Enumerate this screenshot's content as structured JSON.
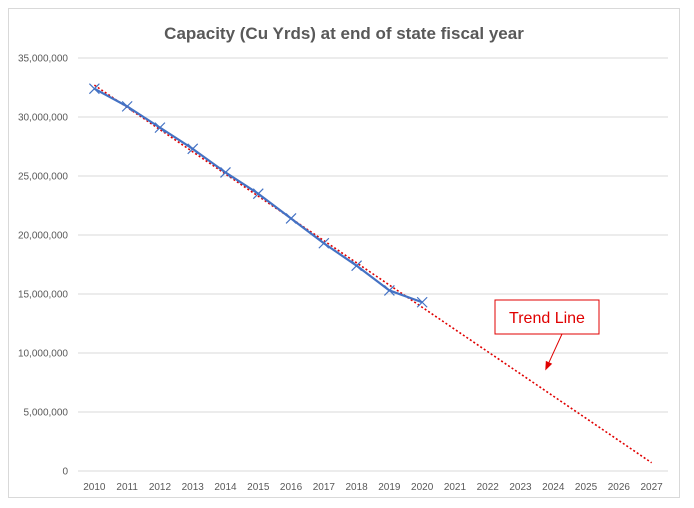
{
  "chart_data": {
    "type": "line",
    "title": "Capacity (Cu Yrds) at end of state fiscal year",
    "xlabel": "",
    "ylabel": "",
    "categories": [
      "2010",
      "2011",
      "2012",
      "2013",
      "2014",
      "2015",
      "2016",
      "2017",
      "2018",
      "2019",
      "2020",
      "2021",
      "2022",
      "2023",
      "2024",
      "2025",
      "2026",
      "2027"
    ],
    "ylim": [
      0,
      35000000
    ],
    "yticks": [
      0,
      5000000,
      10000000,
      15000000,
      20000000,
      25000000,
      30000000,
      35000000
    ],
    "ytick_labels": [
      "0",
      "5,000,000",
      "10,000,000",
      "15,000,000",
      "20,000,000",
      "25,000,000",
      "30,000,000",
      "35,000,000"
    ],
    "grid": true,
    "series": [
      {
        "name": "Capacity",
        "color": "#4472c4",
        "marker": "x",
        "x": [
          "2010",
          "2011",
          "2012",
          "2013",
          "2014",
          "2015",
          "2016",
          "2017",
          "2018",
          "2019",
          "2020"
        ],
        "values": [
          32400000,
          30900000,
          29100000,
          27300000,
          25300000,
          23500000,
          21400000,
          19300000,
          17400000,
          15300000,
          14300000
        ]
      }
    ],
    "trendline": {
      "name": "Trend Line",
      "color": "#e00000",
      "style": "dotted",
      "start": {
        "x": "2010",
        "y": 32700000
      },
      "end": {
        "x": "2027",
        "y": 700000
      }
    },
    "annotation": {
      "text": "Trend Line",
      "color": "#e00000",
      "points_to": {
        "x": "2024",
        "y": 7500000
      }
    }
  }
}
